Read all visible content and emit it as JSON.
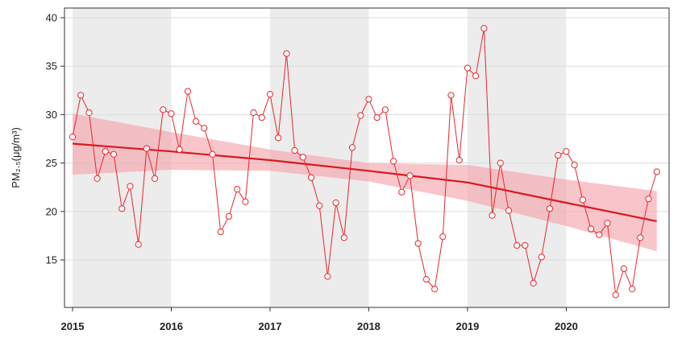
{
  "chart_data": {
    "type": "line",
    "title": "",
    "xlabel": "",
    "ylabel": "PM₂.₅(μg/m³)",
    "xlim": [
      2015.0,
      2020.96
    ],
    "ylim": [
      10.1,
      41.0
    ],
    "y_ticks": [
      15,
      20,
      25,
      30,
      35,
      40
    ],
    "x_ticks": [
      2015,
      2016,
      2017,
      2018,
      2019,
      2020
    ],
    "x_tick_labels": [
      "2015",
      "2016",
      "2017",
      "2018",
      "2019",
      "2020"
    ],
    "grid": true,
    "shaded_year_bands": [
      2015,
      2017,
      2019
    ],
    "colors": {
      "series": "#e8262c",
      "trend": "#d71920",
      "ci": "#f4a6ad",
      "band": "#ececec"
    },
    "series": [
      {
        "marker": "open-circle",
        "x": [
          2015.0,
          2015.083,
          2015.167,
          2015.25,
          2015.333,
          2015.417,
          2015.5,
          2015.583,
          2015.667,
          2015.75,
          2015.833,
          2015.917,
          2016.0,
          2016.083,
          2016.167,
          2016.25,
          2016.333,
          2016.417,
          2016.5,
          2016.583,
          2016.667,
          2016.75,
          2016.833,
          2016.917,
          2017.0,
          2017.083,
          2017.167,
          2017.25,
          2017.333,
          2017.417,
          2017.5,
          2017.583,
          2017.667,
          2017.75,
          2017.833,
          2017.917,
          2018.0,
          2018.083,
          2018.167,
          2018.25,
          2018.333,
          2018.417,
          2018.5,
          2018.583,
          2018.667,
          2018.75,
          2018.833,
          2018.917,
          2019.0,
          2019.083,
          2019.167,
          2019.25,
          2019.333,
          2019.417,
          2019.5,
          2019.583,
          2019.667,
          2019.75,
          2019.833,
          2019.917,
          2020.0,
          2020.083,
          2020.167,
          2020.25,
          2020.333,
          2020.417,
          2020.5,
          2020.583,
          2020.667,
          2020.75,
          2020.833,
          2020.917
        ],
        "y": [
          27.7,
          32.0,
          30.2,
          23.4,
          26.2,
          25.9,
          20.3,
          22.6,
          16.6,
          26.5,
          23.4,
          30.5,
          30.1,
          26.4,
          32.4,
          29.3,
          28.6,
          25.9,
          17.9,
          19.5,
          22.3,
          21.0,
          30.2,
          29.7,
          32.1,
          27.6,
          36.3,
          26.3,
          25.6,
          23.5,
          20.6,
          13.3,
          20.9,
          17.3,
          26.6,
          29.9,
          31.6,
          29.7,
          30.5,
          25.2,
          22.0,
          23.7,
          16.7,
          13.0,
          12.0,
          17.4,
          32.0,
          25.3,
          34.8,
          34.0,
          38.9,
          19.6,
          25.0,
          20.1,
          16.5,
          16.5,
          12.6,
          15.3,
          20.3,
          25.8,
          26.2,
          24.8,
          21.2,
          18.2,
          17.6,
          18.8,
          11.4,
          14.1,
          12.0,
          17.3,
          21.3,
          24.1
        ]
      }
    ],
    "trend": {
      "x": [
        2015.0,
        2016.0,
        2017.0,
        2018.0,
        2019.0,
        2020.0,
        2020.917
      ],
      "y": [
        27.0,
        26.2,
        25.3,
        24.2,
        23.0,
        20.9,
        19.0
      ],
      "ci_upper": [
        30.1,
        28.2,
        26.4,
        25.0,
        24.8,
        23.3,
        22.1
      ],
      "ci_lower": [
        23.8,
        24.3,
        24.2,
        23.1,
        21.1,
        18.5,
        15.9
      ]
    }
  }
}
